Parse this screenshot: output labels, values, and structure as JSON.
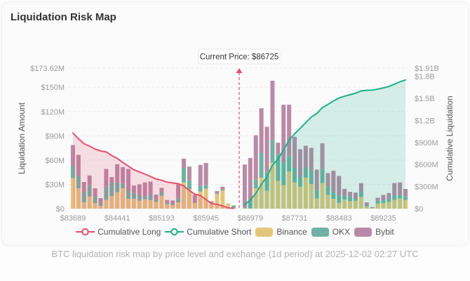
{
  "page": {
    "title": "Liquidation Risk Map",
    "caption": "BTC liquidation risk map by price level and exchange (1d period) at 2025-12-02 02:27 UTC"
  },
  "chart_data": {
    "type": "bar",
    "subtype": "stacked bar with cumulative lines (dual axis)",
    "title": "Liquidation Risk Map",
    "xlabel": "",
    "ylabel": "Liquidation Amount",
    "y2label": "Cumulative Liquidation",
    "value_unit": "USD millions",
    "ylim": [
      0,
      173.62
    ],
    "y_ticks": [
      0,
      30,
      60,
      90,
      120,
      150,
      173.62
    ],
    "y_tick_labels": [
      "$0",
      "$30M",
      "$60M",
      "$90M",
      "$120M",
      "$150M",
      "$173.62M"
    ],
    "y2lim": [
      0,
      1910
    ],
    "y2_ticks": [
      0,
      300,
      600,
      900,
      1200,
      1500,
      1800,
      1910
    ],
    "y2_tick_labels": [
      "$0",
      "$300M",
      "$600M",
      "$900M",
      "$1.2B",
      "$1.5B",
      "$1.8B",
      "$1.91B"
    ],
    "category_count": 61,
    "x_ticks": [
      {
        "index": 0,
        "label": "$83689"
      },
      {
        "index": 8,
        "label": "$84441"
      },
      {
        "index": 16,
        "label": "$85193"
      },
      {
        "index": 24,
        "label": "$85945"
      },
      {
        "index": 32,
        "label": "$86979"
      },
      {
        "index": 40,
        "label": "$87731"
      },
      {
        "index": 48,
        "label": "$88483"
      },
      {
        "index": 56,
        "label": "$89235"
      }
    ],
    "current_price": {
      "label": "Current Price: $86725",
      "value": 86725,
      "category_index": 30
    },
    "grid": true,
    "legend_position": "bottom",
    "series": [
      {
        "name": "Cumulative Long",
        "type": "line",
        "axis": "right",
        "color": "#e3506f",
        "values": [
          1028.4,
          949.8,
          883.4,
          850.4,
          809.4,
          784.2,
          771.2,
          722.1,
          683.1,
          628.2,
          576.8,
          527.8,
          499.2,
          469.2,
          436.8,
          403.3,
          386.0,
          360.3,
          349.6,
          339.5,
          309.5,
          247.7,
          195.7,
          178.7,
          124.7,
          68.3,
          59.1,
          37.4,
          10.3,
          4.0,
          null,
          null,
          null,
          null,
          null,
          null,
          null,
          null,
          null,
          null,
          null,
          null,
          null,
          null,
          null,
          null,
          null,
          null,
          null,
          null,
          null,
          null,
          null,
          null,
          null,
          null,
          null,
          null,
          null,
          null,
          null
        ]
      },
      {
        "name": "Cumulative Short",
        "type": "line",
        "axis": "right",
        "color": "#1fae8a",
        "values": [
          null,
          null,
          null,
          null,
          null,
          null,
          null,
          null,
          null,
          null,
          null,
          null,
          null,
          null,
          null,
          null,
          null,
          null,
          null,
          null,
          null,
          null,
          null,
          null,
          null,
          null,
          null,
          null,
          null,
          null,
          null,
          54.6,
          117.3,
          208.0,
          332.0,
          433.1,
          591.2,
          672.7,
          801.1,
          929.5,
          1018.2,
          1091.6,
          1169.3,
          1244.4,
          1292.6,
          1373.3,
          1417.2,
          1464.0,
          1504.4,
          1528.9,
          1549.7,
          1569.6,
          1601.1,
          1608.9,
          1610.9,
          1624.4,
          1641.4,
          1660.7,
          1692.4,
          1724.8,
          1749.1
        ]
      },
      {
        "name": "Binance",
        "type": "bar",
        "axis": "left",
        "color": "#e3c67b",
        "values": [
          37.6,
          25.2,
          7.8,
          15.0,
          6.9,
          3.5,
          10.7,
          15.6,
          20.2,
          25.2,
          12.1,
          12.1,
          9.8,
          11.5,
          10.7,
          8.3,
          15.9,
          5.5,
          4.3,
          7.8,
          32.4,
          24.0,
          7.0,
          21.0,
          24.5,
          7.0,
          18.0,
          22.5,
          6.0,
          1.0,
          null,
          0.5,
          0.3,
          25.2,
          38.2,
          22.2,
          56.9,
          34.3,
          28.9,
          46.0,
          32.4,
          27.1,
          38.2,
          30.4,
          12.7,
          31.5,
          17.0,
          12.1,
          7.2,
          11.3,
          9.2,
          9.8,
          14.4,
          2.6,
          0.8,
          6.3,
          6.9,
          8.3,
          10.7,
          12.7,
          10.7
        ]
      },
      {
        "name": "OKX",
        "type": "bar",
        "axis": "left",
        "color": "#6fb1a2",
        "values": [
          15.0,
          15.2,
          13.0,
          13.9,
          8.7,
          3.4,
          16.4,
          16.1,
          12.2,
          5.4,
          10.9,
          7.2,
          6.7,
          3.5,
          6.6,
          3.0,
          4.3,
          1.7,
          1.4,
          5.7,
          17.9,
          11.0,
          0.8,
          7.0,
          4.4,
          0.6,
          0.7,
          1.2,
          0.2,
          2.8,
          null,
          0.6,
          8.8,
          10.6,
          30.3,
          23.2,
          28.1,
          32.7,
          28.0,
          19.0,
          17.9,
          12.4,
          13.0,
          16.4,
          10.4,
          17.3,
          10.1,
          8.7,
          8.7,
          4.6,
          5.8,
          2.3,
          6.4,
          0.9,
          0.6,
          3.5,
          3.2,
          3.8,
          5.8,
          4.3,
          4.3
        ]
      },
      {
        "name": "Bybit",
        "type": "bar",
        "axis": "left",
        "color": "#b98aa5",
        "values": [
          26.0,
          26.0,
          12.2,
          12.1,
          9.6,
          6.1,
          22.0,
          7.3,
          22.5,
          20.8,
          26.0,
          9.3,
          13.5,
          17.4,
          16.2,
          6.0,
          5.5,
          3.5,
          4.4,
          16.5,
          11.5,
          17.0,
          9.2,
          26.0,
          27.5,
          1.6,
          3.0,
          3.4,
          0.1,
          0.2,
          null,
          53.5,
          53.6,
          54.9,
          55.5,
          55.7,
          73.1,
          14.5,
          71.5,
          63.4,
          38.4,
          33.9,
          26.5,
          28.3,
          25.1,
          31.9,
          16.8,
          26.0,
          24.5,
          8.6,
          5.8,
          7.8,
          10.7,
          4.3,
          0.6,
          3.7,
          6.9,
          7.2,
          15.2,
          15.4,
          9.3
        ]
      }
    ]
  }
}
